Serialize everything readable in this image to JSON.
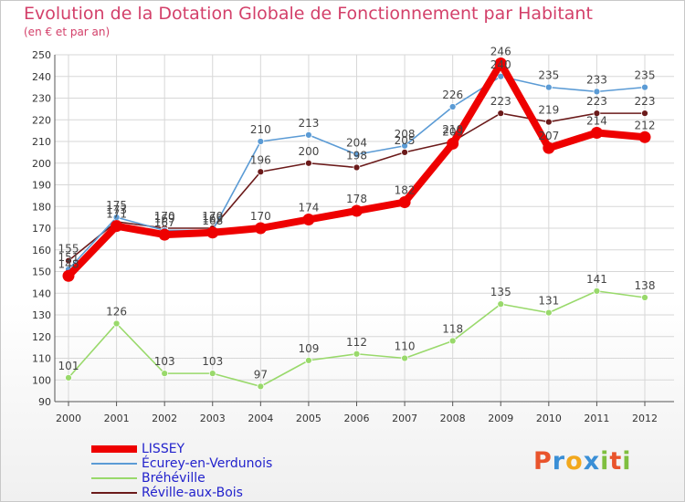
{
  "title": "Evolution de la Dotation Globale de Fonctionnement par Habitant",
  "subtitle": "(en € et par an)",
  "logo": {
    "text": "Proxiti",
    "colors": [
      "#e9542c",
      "#3a8fd6",
      "#f2a81d",
      "#3a8fd6",
      "#7fbf3f",
      "#e9542c",
      "#7fbf3f"
    ]
  },
  "chart_data": {
    "type": "line",
    "x": [
      2000,
      2001,
      2002,
      2003,
      2004,
      2005,
      2006,
      2007,
      2008,
      2009,
      2010,
      2011,
      2012
    ],
    "ylim": [
      90,
      250
    ],
    "yticks": [
      90,
      100,
      110,
      120,
      130,
      140,
      150,
      160,
      170,
      180,
      190,
      200,
      210,
      220,
      230,
      240,
      250
    ],
    "series": [
      {
        "name": "Réville-aux-Bois",
        "color": "#6b1a1a",
        "values": [
          155,
          173,
          170,
          170,
          196,
          200,
          198,
          205,
          210,
          223,
          219,
          223,
          223
        ],
        "labels": [
          "155",
          "173",
          "170",
          "170",
          "196",
          "200",
          "198",
          "205",
          "210",
          "223",
          "219",
          "223",
          "223"
        ]
      },
      {
        "name": "Bréhéville",
        "color": "#99d96b",
        "values": [
          101,
          126,
          103,
          103,
          97,
          109,
          112,
          110,
          118,
          135,
          131,
          141,
          138
        ],
        "labels": [
          "101",
          "126",
          "103",
          "103",
          "97",
          "109",
          "112",
          "110",
          "118",
          "135",
          "131",
          "141",
          "138"
        ]
      },
      {
        "name": "Écurey-en-Verdunois",
        "color": "#5b9bd5",
        "values": [
          151,
          175,
          169,
          169,
          210,
          213,
          204,
          208,
          226,
          240,
          235,
          233,
          235
        ],
        "labels": [
          "151",
          "175",
          "169",
          "169",
          "210",
          "213",
          "204",
          "208",
          "226",
          "240",
          "235",
          "233",
          "235"
        ]
      },
      {
        "name": "LISSEY",
        "color": "#ee0000",
        "values": [
          148,
          171,
          167,
          168,
          170,
          174,
          178,
          182,
          209,
          246,
          207,
          214,
          212
        ],
        "labels": [
          "148",
          "171",
          "167",
          "168",
          "170",
          "174",
          "178",
          "182",
          "209",
          "246",
          "207",
          "214",
          "212"
        ]
      }
    ],
    "legend": [
      {
        "name": "LISSEY",
        "color": "#ee0000"
      },
      {
        "name": "Écurey-en-Verdunois",
        "color": "#5b9bd5"
      },
      {
        "name": "Bréhéville",
        "color": "#99d96b"
      },
      {
        "name": "Réville-aux-Bois",
        "color": "#6b1a1a"
      }
    ]
  }
}
